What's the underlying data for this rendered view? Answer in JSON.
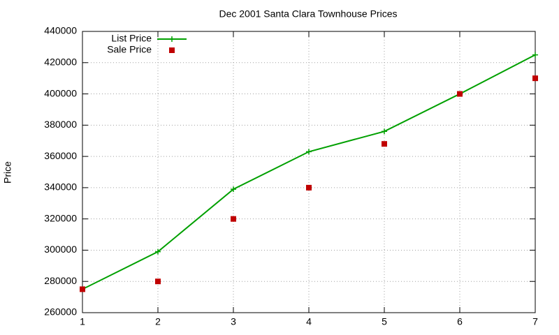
{
  "chart_data": {
    "type": "line",
    "title": "Dec 2001 Santa Clara Townhouse Prices",
    "y_label": "Price",
    "x": [
      1,
      2,
      3,
      4,
      5,
      6,
      7
    ],
    "series": [
      {
        "name": "List Price",
        "color": "#00a000",
        "style": "linespoints",
        "values": [
          275000,
          299000,
          339000,
          363000,
          376000,
          400000,
          425000
        ]
      },
      {
        "name": "Sale Price",
        "color": "#c00000",
        "style": "points",
        "values": [
          275000,
          280000,
          320000,
          340000,
          368000,
          400000,
          410000
        ]
      }
    ],
    "xlim": [
      1,
      7
    ],
    "xticks": [
      1,
      2,
      3,
      4,
      5,
      6,
      7
    ],
    "ylim": [
      260000,
      440000
    ],
    "yticks": [
      260000,
      280000,
      300000,
      320000,
      340000,
      360000,
      380000,
      400000,
      420000,
      440000
    ],
    "grid": true,
    "legend": "top-left"
  }
}
